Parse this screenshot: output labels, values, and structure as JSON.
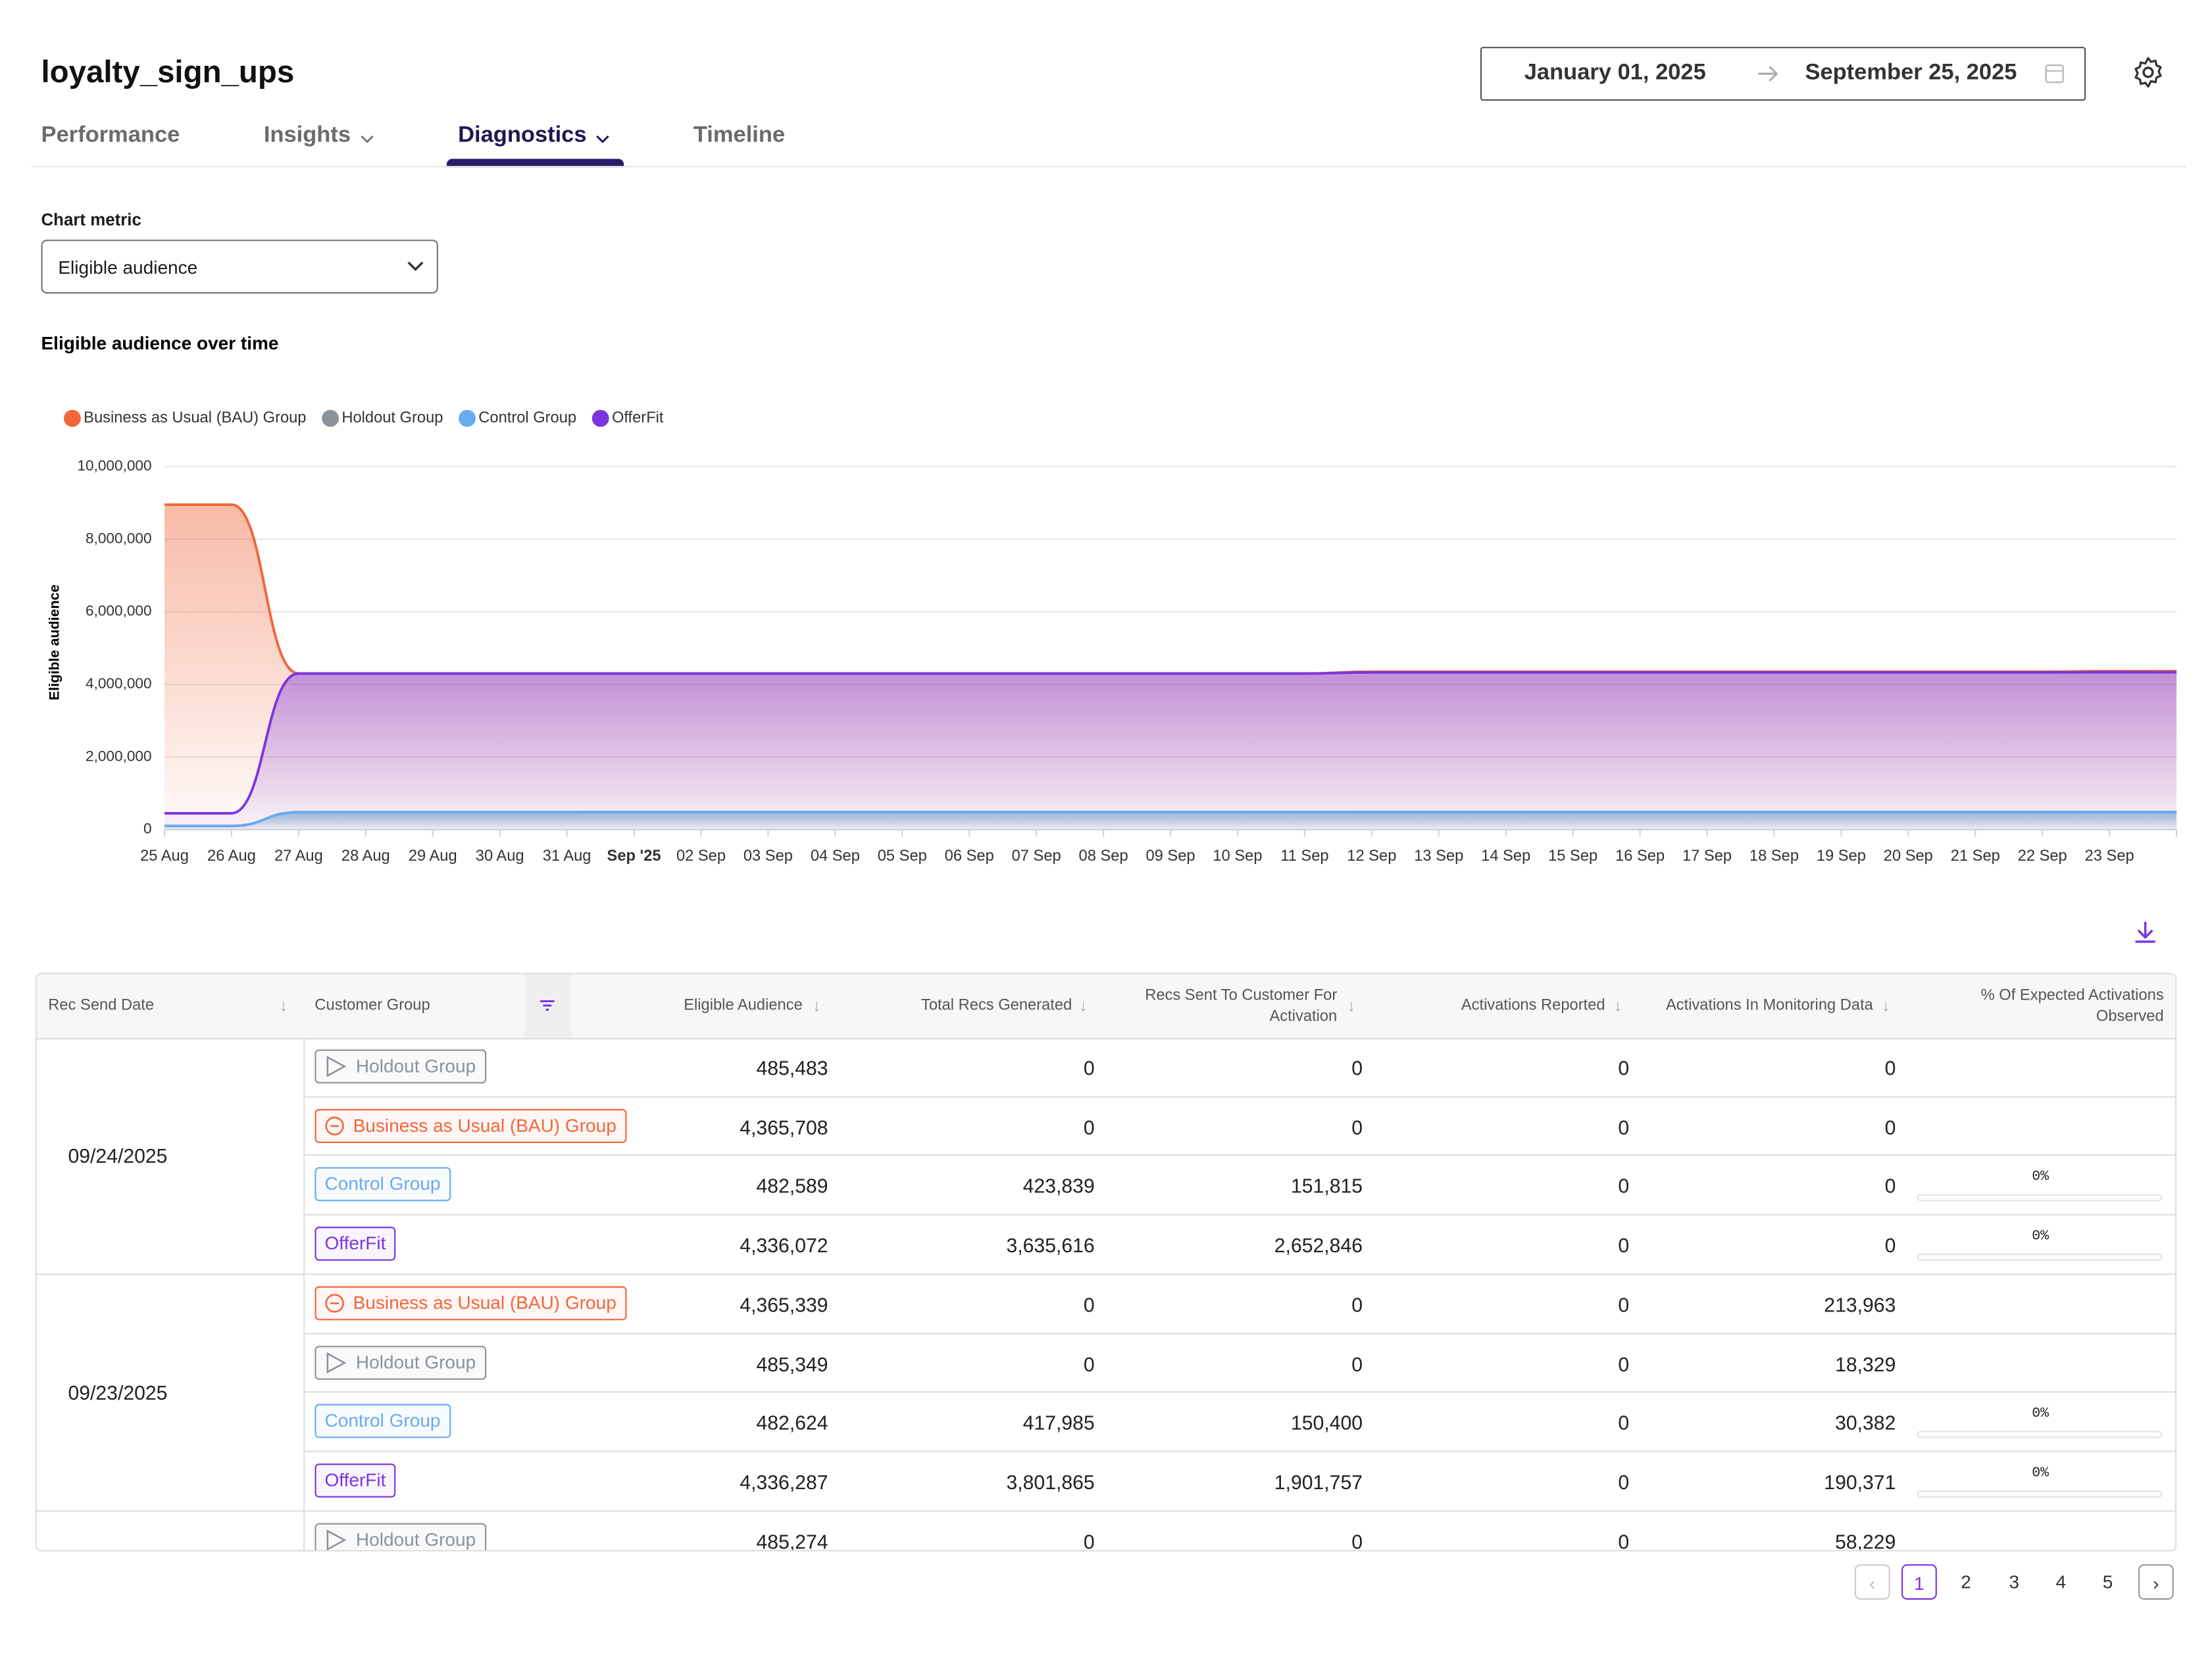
{
  "header": {
    "title": "loyalty_sign_ups",
    "date_start": "January 01, 2025",
    "date_end": "September 25, 2025"
  },
  "tabs": [
    "Performance",
    "Insights",
    "Diagnostics",
    "Timeline"
  ],
  "chart_metric": {
    "label": "Chart metric",
    "value": "Eligible audience"
  },
  "chart_data": {
    "type": "area",
    "title": "Eligible audience over time",
    "y_label": "Eligible audience",
    "categories": [
      "25 Aug",
      "26 Aug",
      "27 Aug",
      "28 Aug",
      "29 Aug",
      "30 Aug",
      "31 Aug",
      "Sep '25",
      "02 Sep",
      "03 Sep",
      "04 Sep",
      "05 Sep",
      "06 Sep",
      "07 Sep",
      "08 Sep",
      "09 Sep",
      "10 Sep",
      "11 Sep",
      "12 Sep",
      "13 Sep",
      "14 Sep",
      "15 Sep",
      "16 Sep",
      "17 Sep",
      "18 Sep",
      "19 Sep",
      "20 Sep",
      "21 Sep",
      "22 Sep",
      "23 Sep",
      null
    ],
    "series": [
      {
        "name": "Business as Usual (BAU) Group",
        "color": "#f0673a",
        "values": [
          8950000,
          8950000,
          4300000,
          4300000,
          4300000,
          4300000,
          4300000,
          4300000,
          4300000,
          4300000,
          4300000,
          4300000,
          4300000,
          4300000,
          4300000,
          4300000,
          4300000,
          4300000,
          4350000,
          4350000,
          4350000,
          4350000,
          4350000,
          4350000,
          4350000,
          4350000,
          4350000,
          4350000,
          4350000,
          4365339,
          4365708
        ]
      },
      {
        "name": "Holdout Group",
        "color": "#8a939b",
        "values": [
          100000,
          100000,
          480000,
          482000,
          482000,
          482000,
          482000,
          483000,
          483000,
          483000,
          483000,
          483000,
          484000,
          484000,
          484000,
          484000,
          484000,
          484000,
          485000,
          485000,
          485000,
          485000,
          485000,
          485000,
          485000,
          485000,
          485000,
          485000,
          485000,
          485349,
          485483
        ]
      },
      {
        "name": "Control Group",
        "color": "#6aaaf0",
        "values": [
          100000,
          100000,
          480000,
          481000,
          481000,
          481000,
          481000,
          481000,
          481000,
          481000,
          482000,
          482000,
          482000,
          482000,
          482000,
          482000,
          482000,
          482000,
          482000,
          482000,
          482000,
          482000,
          482000,
          482000,
          482000,
          482000,
          482000,
          482000,
          482000,
          482624,
          482589
        ]
      },
      {
        "name": "OfferFit",
        "color": "#7b35e0",
        "values": [
          450000,
          450000,
          4300000,
          4300000,
          4300000,
          4300000,
          4300000,
          4300000,
          4300000,
          4300000,
          4300000,
          4300000,
          4300000,
          4300000,
          4300000,
          4300000,
          4300000,
          4300000,
          4330000,
          4330000,
          4330000,
          4330000,
          4330000,
          4330000,
          4330000,
          4330000,
          4330000,
          4330000,
          4330000,
          4336287,
          4336072
        ]
      }
    ],
    "ylim": [
      0,
      10000000
    ],
    "yticks": [
      {
        "value": 0,
        "label": "0"
      },
      {
        "value": 2000000,
        "label": "2,000,000"
      },
      {
        "value": 4000000,
        "label": "4,000,000"
      },
      {
        "value": 6000000,
        "label": "6,000,000"
      },
      {
        "value": 8000000,
        "label": "8,000,000"
      },
      {
        "value": 10000000,
        "label": "10,000,000"
      }
    ],
    "grid": true,
    "legend": "top-left"
  },
  "table": {
    "columns": [
      "Rec Send Date",
      "Customer Group",
      "Eligible Audience",
      "Total Recs Generated",
      "Recs Sent To Customer For Activation",
      "Activations Reported",
      "Activations In Monitoring Data",
      "% Of Expected Activations Observed"
    ],
    "groups": [
      {
        "date": "09/24/2025",
        "rows": [
          {
            "group": "Holdout Group",
            "values": [
              "485,483",
              "0",
              "0",
              "0",
              "0"
            ]
          },
          {
            "group": "Business as Usual (BAU) Group",
            "values": [
              "4,365,708",
              "0",
              "0",
              "0",
              "0"
            ]
          },
          {
            "group": "Control Group",
            "values": [
              "482,589",
              "423,839",
              "151,815",
              "0",
              "0"
            ],
            "observed": "0%"
          },
          {
            "group": "OfferFit",
            "values": [
              "4,336,072",
              "3,635,616",
              "2,652,846",
              "0",
              "0"
            ],
            "observed": "0%"
          }
        ]
      },
      {
        "date": "09/23/2025",
        "rows": [
          {
            "group": "Business as Usual (BAU) Group",
            "values": [
              "4,365,339",
              "0",
              "0",
              "0",
              "213,963"
            ]
          },
          {
            "group": "Holdout Group",
            "values": [
              "485,349",
              "0",
              "0",
              "0",
              "18,329"
            ]
          },
          {
            "group": "Control Group",
            "values": [
              "482,624",
              "417,985",
              "150,400",
              "0",
              "30,382"
            ],
            "observed": "0%"
          },
          {
            "group": "OfferFit",
            "values": [
              "4,336,287",
              "3,801,865",
              "1,901,757",
              "0",
              "190,371"
            ],
            "observed": "0%"
          }
        ]
      },
      {
        "rows": [
          {
            "group": "Holdout Group",
            "values": [
              "485,274",
              "0",
              "0",
              "0",
              "58,229"
            ]
          }
        ]
      }
    ]
  },
  "pagination": {
    "pages": [
      1,
      2,
      3,
      4,
      5
    ],
    "current": 1
  }
}
